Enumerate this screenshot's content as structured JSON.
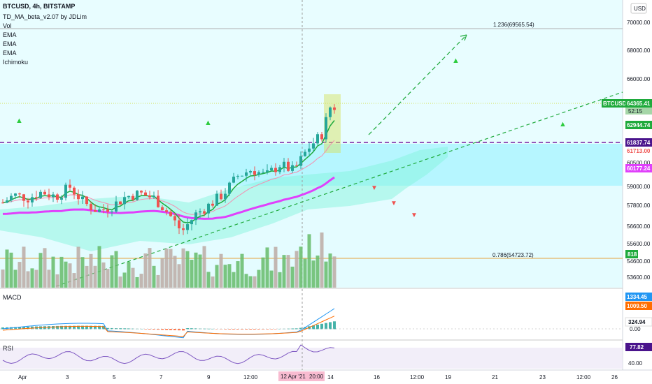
{
  "header": {
    "symbol": "BTCUSD, 4h, BITSTAMP",
    "indicators": [
      "TD_MA_beta_v2.07 by JDLim",
      "Vol",
      "EMA",
      "EMA",
      "EMA",
      "Ichimoku"
    ],
    "currency": "USD"
  },
  "colors": {
    "bull": "#26a69a",
    "bear": "#ef5350",
    "ema_pink": "#e040fb",
    "cloud": "#a5f0e6",
    "trend": "#1faa3c",
    "level_purple": "#7b1fa2",
    "fib_orange": "#e6a23c"
  },
  "price_axis": {
    "ticks": [
      "70000.00",
      "68000.00",
      "66000.00",
      "60500.00",
      "59000.00",
      "57800.00",
      "56600.00",
      "55600.00",
      "54600.00",
      "53600.00"
    ],
    "boxes": [
      {
        "label": "BTCUSD",
        "value": "64365.41",
        "sub": "52:15",
        "bg": "#1faa3c",
        "fg": "#ffffff"
      },
      {
        "value": "62944.74",
        "bg": "#1faa3c",
        "fg": "#ffffff"
      },
      {
        "value": "61837.74",
        "bg": "#4a148c",
        "fg": "#ffffff"
      },
      {
        "value": "61713.00",
        "bg": "#ffffff",
        "fg": "#ef5350"
      },
      {
        "value": "60177.24",
        "bg": "#e040fb",
        "fg": "#ffffff"
      },
      {
        "value": "818",
        "bg": "#1faa3c",
        "fg": "#ffffff"
      }
    ]
  },
  "fib_levels": [
    {
      "label": "1.236(69565.54)"
    },
    {
      "label": "0.786(54723.72)"
    }
  ],
  "macd": {
    "title": "MACD",
    "boxes": [
      {
        "value": "1334.45",
        "bg": "#2196f3",
        "fg": "#ffffff"
      },
      {
        "value": "1009.50",
        "bg": "#ff6d00",
        "fg": "#ffffff"
      },
      {
        "value": "324.94",
        "bg": "#ffffff",
        "fg": "#131722"
      }
    ],
    "zero": "0.00"
  },
  "rsi": {
    "title": "RSI",
    "value": "77.82",
    "tick": "40.00"
  },
  "time_axis": {
    "ticks": [
      "Apr",
      "3",
      "5",
      "7",
      "9",
      "12:00",
      "14",
      "16",
      "12:00",
      "19",
      "21",
      "23",
      "12:00",
      "26"
    ],
    "cursor_label": "12 Apr '21",
    "cursor_time": "20:00"
  },
  "chart_data": {
    "type": "candlestick",
    "symbol": "BTCUSD",
    "interval": "4h",
    "exchange": "BITSTAMP",
    "last_price": 64365.41,
    "levels": {
      "resistance": 61837.74,
      "ema_fast": 62944.74,
      "ema_slow": 60177.24,
      "low_mark": 61713.0,
      "fib_1_236": 69565.54,
      "fib_0_786": 54723.72
    },
    "ylim": [
      53000,
      71000
    ],
    "macd_values": {
      "macd": 1334.45,
      "signal": 1009.5,
      "histogram": 324.94
    },
    "rsi_value": 77.82,
    "volume_last": 818
  }
}
